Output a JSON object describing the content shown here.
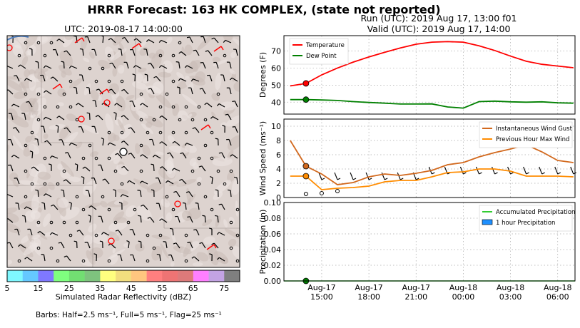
{
  "title": "HRRR Forecast: 163 HK COMPLEX, (state not reported)",
  "run_line": "Run (UTC): 2019 Aug 17, 13:00 f01",
  "valid_line": "Valid (UTC): 2019 Aug 17, 14:00",
  "map": {
    "title": "UTC: 2019-08-17 14:00:00",
    "colorbar": {
      "label": "Simulated Radar Reflectivity (dBZ)",
      "ticks": [
        "5",
        "15",
        "25",
        "35",
        "45",
        "55",
        "65",
        "75"
      ],
      "colors": [
        "#7ff8ff",
        "#65c8ff",
        "#7f78ff",
        "#7fff7f",
        "#72de72",
        "#7ec37e",
        "#ffff7f",
        "#f2de7e",
        "#ffc67f",
        "#ff7f7f",
        "#ee7474",
        "#dd7a7a",
        "#ff7fff",
        "#c3a3e3",
        "#7f7f7f"
      ]
    },
    "barbs_note": "Barbs: Half=2.5 ms⁻¹, Full=5 ms⁻¹, Flag=25 ms⁻¹"
  },
  "time_ticks": [
    "Aug-17\n15:00",
    "Aug-17\n18:00",
    "Aug-17\n21:00",
    "Aug-18\n00:00",
    "Aug-18\n03:00",
    "Aug-18\n06:00"
  ],
  "chart_data": [
    {
      "type": "line",
      "ylabel": "Degrees (F)",
      "ylim": [
        33,
        79
      ],
      "yticks": [
        40,
        50,
        60,
        70
      ],
      "legend_position": "top-left",
      "x_hours": [
        13,
        14,
        15,
        16,
        17,
        18,
        19,
        20,
        21,
        22,
        23,
        24,
        25,
        26,
        27,
        28,
        29,
        30,
        31
      ],
      "series": [
        {
          "name": "Temperature",
          "color": "#ff0000",
          "values": [
            49.5,
            51,
            56,
            60,
            63.5,
            66.5,
            69.2,
            71.8,
            74,
            75.2,
            75.5,
            75.2,
            73,
            70.3,
            67,
            64,
            62.2,
            61.2,
            60.2
          ]
        },
        {
          "name": "Dew Point",
          "color": "#008000",
          "values": [
            41.5,
            41.5,
            41.3,
            41,
            40.3,
            39.8,
            39.4,
            38.9,
            38.9,
            39,
            37.2,
            36.5,
            40.3,
            40.6,
            40.2,
            40,
            40.2,
            39.6,
            39.4
          ]
        }
      ],
      "markers": [
        {
          "x": 14,
          "y": 51,
          "color": "#ff0000"
        },
        {
          "x": 14,
          "y": 41.5,
          "color": "#008000"
        }
      ]
    },
    {
      "type": "line",
      "ylabel": "Wind Speed (ms⁻¹)",
      "ylim": [
        0,
        11
      ],
      "yticks": [
        0,
        2,
        4,
        6,
        8,
        10
      ],
      "legend_position": "top-right",
      "x_hours": [
        13,
        14,
        15,
        16,
        17,
        18,
        19,
        20,
        21,
        22,
        23,
        24,
        25,
        26,
        27,
        28,
        29,
        30,
        31
      ],
      "series": [
        {
          "name": "Instantaneous Wind Gust",
          "color": "#d2691e",
          "values": [
            8,
            4.4,
            3.3,
            1.8,
            2.1,
            2.9,
            3.3,
            3.1,
            3.4,
            3.8,
            4.6,
            4.9,
            5.7,
            6.3,
            6.8,
            7.4,
            6.4,
            5.2,
            4.9
          ]
        },
        {
          "name": "Previous Hour Max Wind",
          "color": "#ff8c00",
          "values": [
            3,
            3,
            1.1,
            1.3,
            1.4,
            1.6,
            2.2,
            2.4,
            2.4,
            2.9,
            3.5,
            3.6,
            4,
            4,
            3.7,
            3,
            3,
            3,
            2.9
          ]
        }
      ],
      "markers": [
        {
          "x": 14,
          "y": 4.4,
          "color": "#d2691e"
        },
        {
          "x": 14,
          "y": 3,
          "color": "#ff8c00"
        }
      ]
    },
    {
      "type": "bar",
      "ylabel": "Precipitation (in)",
      "ylim": [
        0,
        0.1
      ],
      "yticks": [
        "0.00",
        "0.02",
        "0.04",
        "0.06",
        "0.08",
        "0.10"
      ],
      "legend_position": "top-right",
      "series": [
        {
          "name": "Accumulated Precipitation",
          "color": "#32cd32",
          "values": [
            0,
            0,
            0,
            0,
            0,
            0,
            0,
            0,
            0,
            0,
            0,
            0,
            0,
            0,
            0,
            0,
            0,
            0
          ]
        },
        {
          "name": "1 hour Precipitation",
          "color": "#1e90ff",
          "values": [
            0,
            0,
            0,
            0,
            0,
            0,
            0,
            0,
            0,
            0,
            0,
            0,
            0,
            0,
            0,
            0,
            0,
            0
          ]
        }
      ],
      "markers": [
        {
          "x": 14,
          "y": 0,
          "color": "#008000"
        }
      ]
    }
  ]
}
